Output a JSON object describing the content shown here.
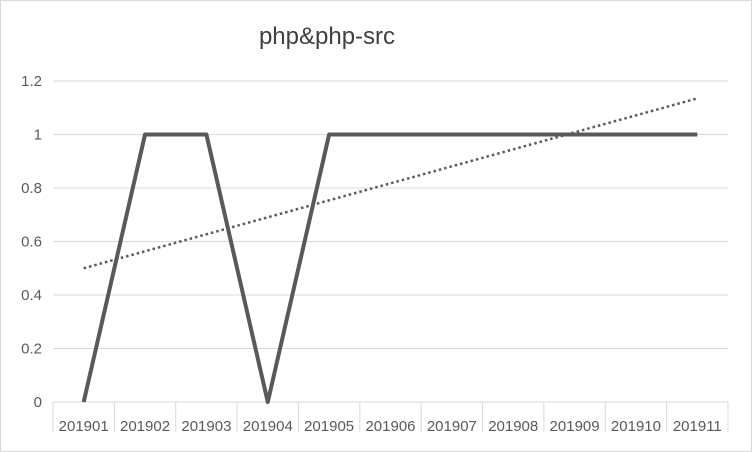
{
  "chart_data": {
    "type": "line",
    "title": "php&php-src",
    "xlabel": "",
    "ylabel": "",
    "categories": [
      "201901",
      "201902",
      "201903",
      "201904",
      "201905",
      "201906",
      "201907",
      "201908",
      "201909",
      "201910",
      "201911"
    ],
    "series": [
      {
        "values": [
          0,
          1,
          1,
          0,
          1,
          1,
          1,
          1,
          1,
          1,
          1
        ],
        "color": "#595959",
        "style": "solid"
      }
    ],
    "trendline": {
      "type": "linear",
      "start": 0.5,
      "end": 1.135,
      "color": "#595959",
      "style": "dotted"
    },
    "ylim": [
      0,
      1.2
    ],
    "yticks": [
      "0",
      "0.2",
      "0.4",
      "0.6",
      "0.8",
      "1",
      "1.2"
    ],
    "grid": true,
    "legend": "none"
  }
}
